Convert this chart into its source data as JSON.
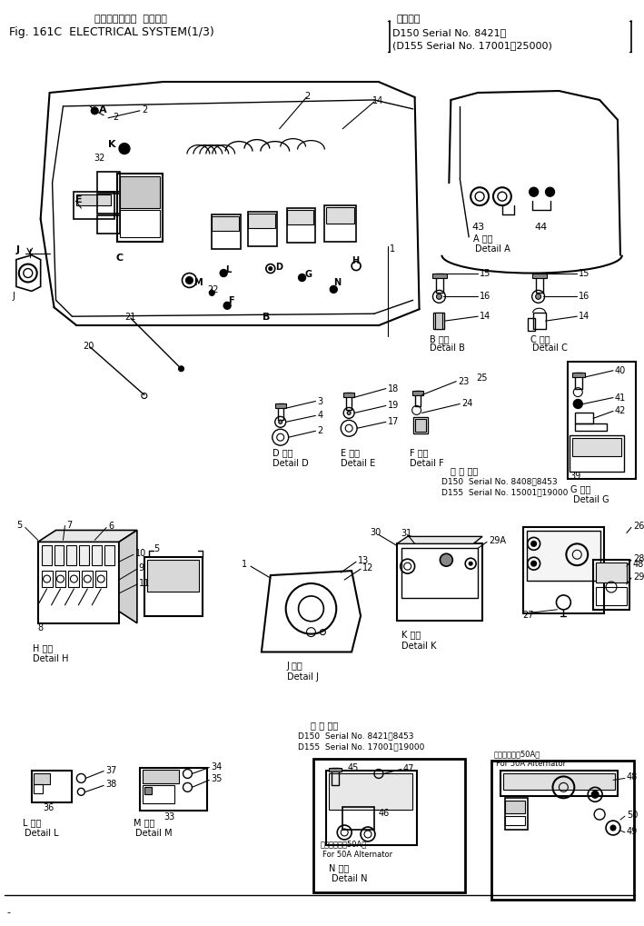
{
  "bg_color": "#ffffff",
  "line_color": "#000000",
  "title_jp": "エレクトリカル  システム",
  "title_en": "Fig. 161C  ELECTRICAL SYSTEM(1/3)",
  "serial1": "適用号機",
  "serial2": "D150 Serial No. 8421～",
  "serial3": "(D155 Serial No. 17001～25000)",
  "fig_width": 7.09,
  "fig_height": 10.2,
  "dpi": 100
}
